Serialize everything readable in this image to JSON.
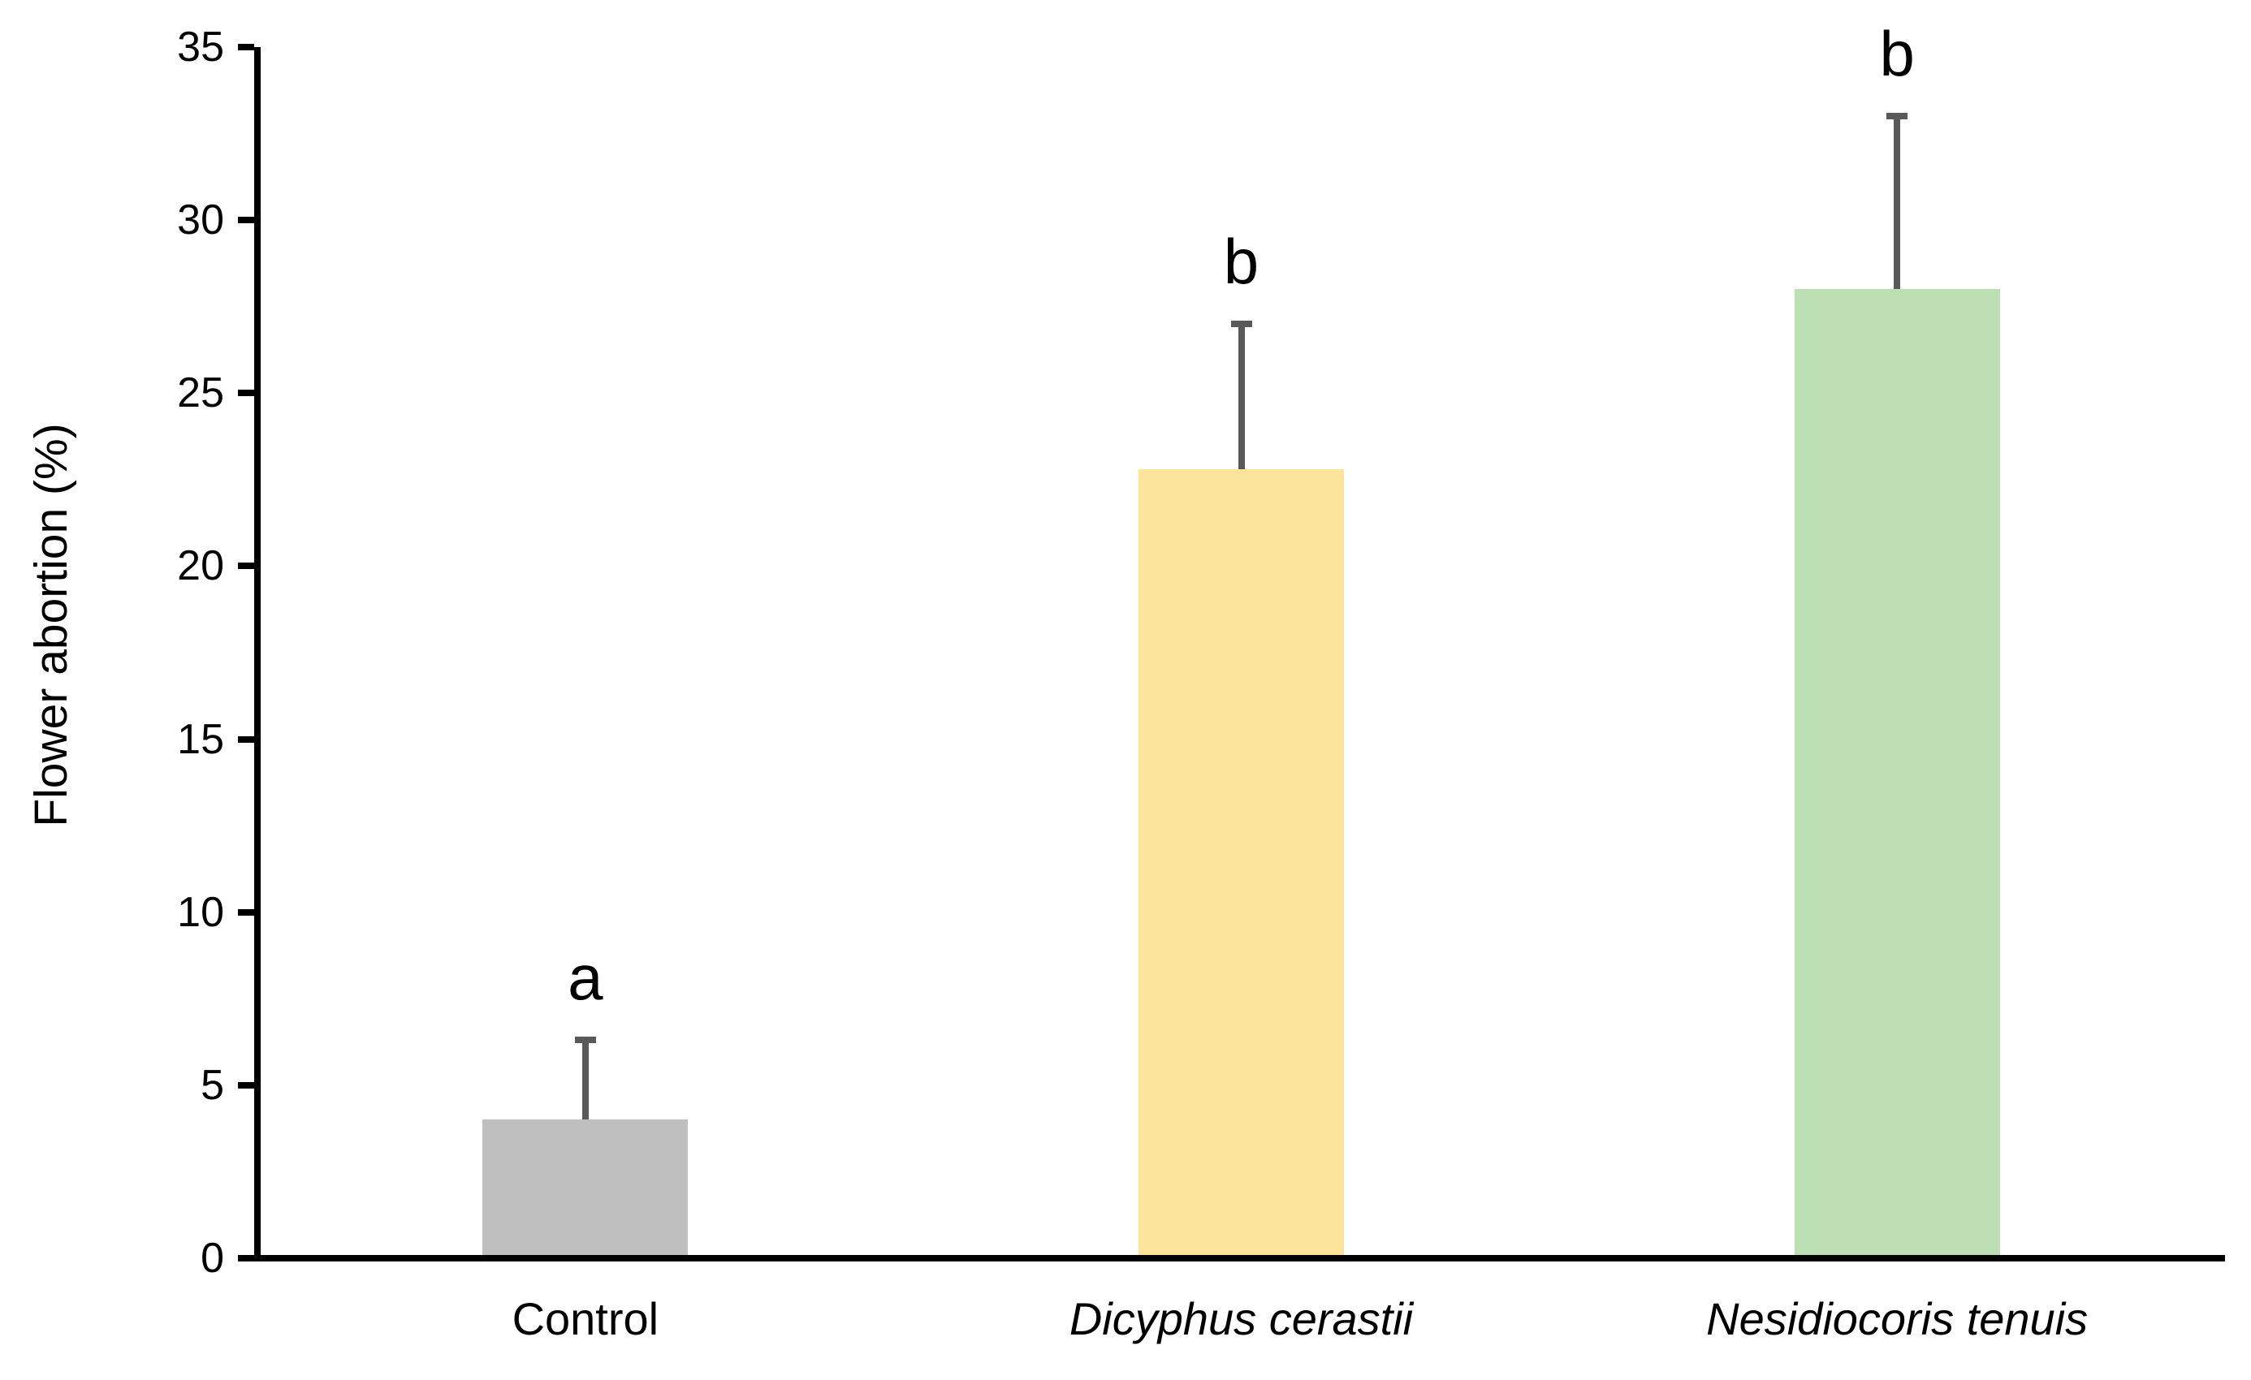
{
  "chart_data": {
    "type": "bar",
    "title": "",
    "ylabel": "Flower abortion (%)",
    "xlabel": "",
    "ylim": [
      0,
      35
    ],
    "yticks": [
      0,
      5,
      10,
      15,
      20,
      25,
      30,
      35
    ],
    "grid": false,
    "legend": "none",
    "categories": [
      "Control",
      "Dicyphus cerastii",
      "Nesidiocoris tenuis"
    ],
    "categories_italic": [
      false,
      true,
      true
    ],
    "values": [
      4.0,
      22.8,
      28.0
    ],
    "error_plus": [
      2.3,
      4.2,
      5.0
    ],
    "error_top_values": [
      6.3,
      27.0,
      33.0
    ],
    "sig_letters": [
      "a",
      "b",
      "b"
    ],
    "bar_colors": [
      "#BFBFBF",
      "#FCE49B",
      "#BCE0B3"
    ],
    "error_bar_color": "#595959",
    "axis_color": "#000000",
    "text_color": "#000000",
    "background_color": "#FFFFFF"
  }
}
